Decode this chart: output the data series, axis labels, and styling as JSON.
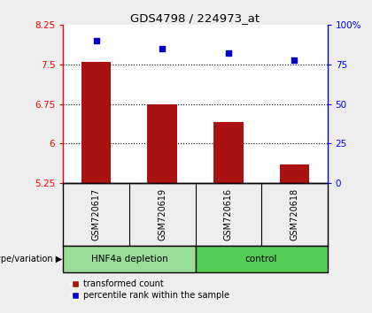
{
  "title": "GDS4798 / 224973_at",
  "samples": [
    "GSM720617",
    "GSM720619",
    "GSM720616",
    "GSM720618"
  ],
  "transformed_counts": [
    7.55,
    6.75,
    6.4,
    5.6
  ],
  "percentile_ranks": [
    90,
    85,
    82,
    78
  ],
  "ylim_left": [
    5.25,
    8.25
  ],
  "ylim_right": [
    0,
    100
  ],
  "yticks_left": [
    5.25,
    6.0,
    6.75,
    7.5,
    8.25
  ],
  "ytick_labels_left": [
    "5.25",
    "6",
    "6.75",
    "7.5",
    "8.25"
  ],
  "yticks_right": [
    0,
    25,
    50,
    75,
    100
  ],
  "ytick_labels_right": [
    "0",
    "25",
    "50",
    "75",
    "100%"
  ],
  "hlines": [
    6.0,
    6.75,
    7.5
  ],
  "bar_color": "#aa1111",
  "dot_color": "#0000cc",
  "group1_label": "HNF4a depletion",
  "group2_label": "control",
  "group1_color": "#99dd99",
  "group2_color": "#55cc55",
  "genotype_label": "genotype/variation",
  "legend_bar_label": "transformed count",
  "legend_dot_label": "percentile rank within the sample",
  "bar_width": 0.45,
  "bar_bottom": 5.25,
  "plot_bg": "#ffffff",
  "sample_bg": "#cccccc",
  "fig_bg": "#eeeeee"
}
